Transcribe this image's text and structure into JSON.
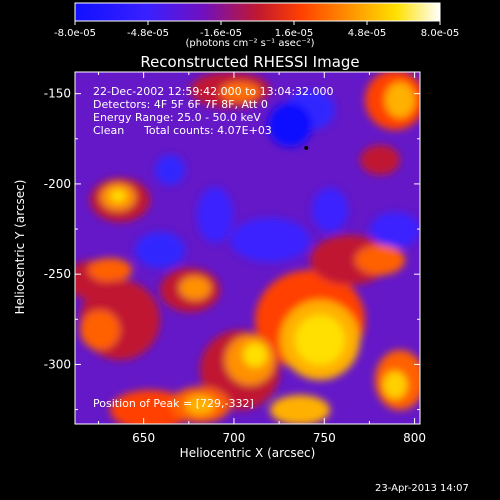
{
  "colorbar": {
    "ticks": [
      "-8.0e-05",
      "-4.8e-05",
      "-1.6e-05",
      "1.6e-05",
      "4.8e-05",
      "8.0e-05"
    ],
    "tick_values": [
      -8e-05,
      -4.8e-05,
      -1.6e-05,
      1.6e-05,
      4.8e-05,
      8e-05
    ],
    "range": [
      -8e-05,
      8e-05
    ],
    "units_label": "(photons cm⁻² s⁻¹ asec⁻²)",
    "colors": [
      "#1a24ff",
      "#6010c0",
      "#c02040",
      "#ff6a00",
      "#ffd000",
      "#ffffff"
    ]
  },
  "chart_data": {
    "type": "heatmap",
    "title": "Reconstructed RHESSI Image",
    "xlabel": "Heliocentric X (arcsec)",
    "ylabel": "Heliocentric Y (arcsec)",
    "xlim": [
      612,
      803
    ],
    "ylim": [
      -333,
      -138
    ],
    "x_ticks": [
      650,
      700,
      750,
      800
    ],
    "y_ticks": [
      -150,
      -200,
      -250,
      -300
    ],
    "annotations": {
      "line1": "22-Dec-2002 12:59:42.000 to 13:04:32.000",
      "line2": "Detectors: 4F 5F 6F 7F 8F, Att 0",
      "line3": "Energy Range: 25.0 - 50.0 keV",
      "line4_label": "Clean",
      "line4_counts": "Total counts: 4.07E+03",
      "peak": "Position of Peak = [729,-332]"
    },
    "marked_point": [
      740,
      -180
    ]
  },
  "footer": {
    "timestamp": "23-Apr-2013 14:07"
  }
}
